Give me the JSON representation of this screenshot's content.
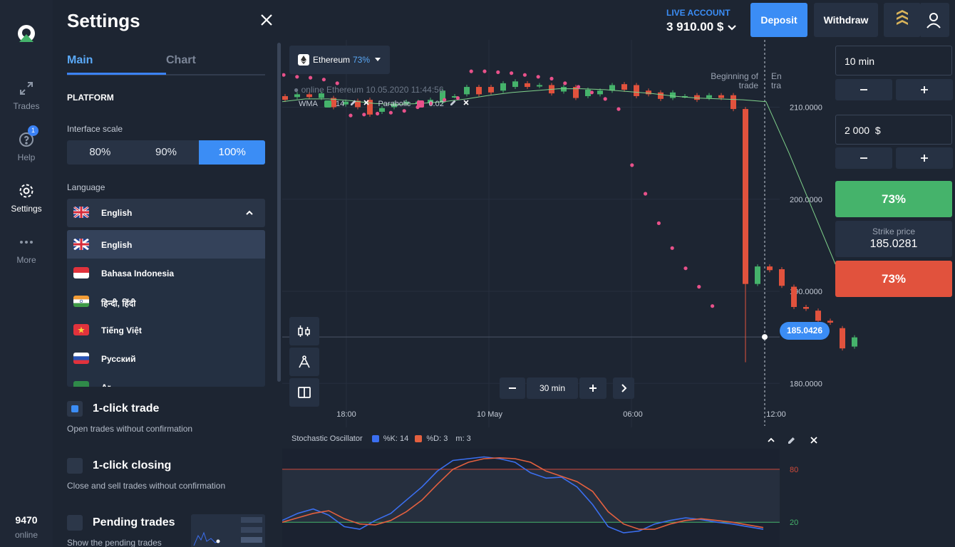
{
  "rail": {
    "items": [
      {
        "label": "Trades",
        "icon": "arrows-icon"
      },
      {
        "label": "Help",
        "icon": "help-icon",
        "badge": "1"
      },
      {
        "label": "Settings",
        "icon": "gear-icon"
      },
      {
        "label": "More",
        "icon": "more-icon"
      }
    ],
    "online_count": "9470",
    "online_label": "online"
  },
  "settings": {
    "title": "Settings",
    "tabs": [
      "Main",
      "Chart"
    ],
    "platform_label": "PLATFORM",
    "interface_scale_label": "Interface scale",
    "scale_options": [
      "80%",
      "90%",
      "100%"
    ],
    "scale_selected": "100%",
    "language_label": "Language",
    "language_selected": "English",
    "languages": [
      "English",
      "Bahasa Indonesia",
      "हिन्दी, हिंदी",
      "Tiếng Việt",
      "Русский",
      "Ar"
    ],
    "one_click_trade": {
      "title": "1-click trade",
      "desc": "Open trades without confirmation",
      "checked": true
    },
    "one_click_closing": {
      "title": "1-click closing",
      "desc": "Close and sell trades without confirmation",
      "checked": false
    },
    "pending_trades": {
      "title": "Pending trades",
      "desc": "Show the pending trades",
      "checked": false
    }
  },
  "topbar": {
    "account_label": "LIVE ACCOUNT",
    "balance": "3 910.00 $",
    "deposit": "Deposit",
    "withdraw": "Withdraw"
  },
  "asset": {
    "name": "Ethereum",
    "percent": "73%"
  },
  "chart_info": {
    "online_line": "online Ethereum  10.05.2020 11:44:56",
    "wma_label": "WMA",
    "wma_period": "14",
    "parabolic_label": "Parabolic",
    "parabolic_value": "0.02",
    "beginning_of_trade": "Beginning of trade",
    "end_of_trade_partial": "En tra",
    "timeframe": "30 min",
    "current_price": "185.0426",
    "colors": {
      "up": "#45b36b",
      "down": "#e1523d",
      "wma": "#7fd18b",
      "parabolic": "#e8518a",
      "k": "#3b6ff0",
      "d": "#e3603f"
    }
  },
  "chart_data": [
    {
      "type": "line",
      "title": "Ethereum",
      "y_ticks": [
        210,
        200,
        190,
        180
      ],
      "ylim": [
        176,
        217
      ],
      "x_ticks": [
        "18:00",
        "10 May",
        "06:00",
        "12:00"
      ],
      "candles": [
        {
          "o": 211.2,
          "c": 210.8
        },
        {
          "o": 211.1,
          "c": 211.4
        },
        {
          "o": 211.4,
          "c": 211.1
        },
        {
          "o": 211.0,
          "c": 211.5
        },
        {
          "o": 211.0,
          "c": 210.0
        },
        {
          "o": 210.3,
          "c": 210.6
        },
        {
          "o": 210.7,
          "c": 210.0
        },
        {
          "o": 210.8,
          "c": 209.2
        },
        {
          "o": 209.5,
          "c": 209.9
        },
        {
          "o": 210.0,
          "c": 210.4
        },
        {
          "o": 210.4,
          "c": 210.6
        },
        {
          "o": 210.4,
          "c": 210.6
        },
        {
          "o": 210.5,
          "c": 210.8
        },
        {
          "o": 210.5,
          "c": 211.8
        },
        {
          "o": 211.2,
          "c": 211.2
        },
        {
          "o": 211.4,
          "c": 212.2
        },
        {
          "o": 212.2,
          "c": 211.4
        },
        {
          "o": 212.2,
          "c": 211.6
        },
        {
          "o": 211.8,
          "c": 212.6
        },
        {
          "o": 212.2,
          "c": 212.8
        },
        {
          "o": 212.6,
          "c": 212.2
        },
        {
          "o": 212.3,
          "c": 212.4
        },
        {
          "o": 212.4,
          "c": 211.5
        },
        {
          "o": 211.7,
          "c": 212.2
        },
        {
          "o": 212.2,
          "c": 211.0
        },
        {
          "o": 211.2,
          "c": 211.9
        },
        {
          "o": 211.4,
          "c": 211.8
        },
        {
          "o": 211.8,
          "c": 212.4
        },
        {
          "o": 212.5,
          "c": 211.9
        },
        {
          "o": 212.4,
          "c": 211.2
        },
        {
          "o": 211.8,
          "c": 211.4
        },
        {
          "o": 211.6,
          "c": 210.9
        },
        {
          "o": 211.0,
          "c": 211.6
        },
        {
          "o": 211.2,
          "c": 211.2
        },
        {
          "o": 211.3,
          "c": 210.8
        },
        {
          "o": 211.0,
          "c": 211.3
        },
        {
          "o": 211.3,
          "c": 211.0
        },
        {
          "o": 211.3,
          "c": 209.8
        },
        {
          "o": 209.8,
          "c": 190.8
        },
        {
          "o": 190.8,
          "c": 192.7
        },
        {
          "o": 192.7,
          "c": 192.3
        },
        {
          "o": 192.4,
          "c": 190.6
        },
        {
          "o": 190.5,
          "c": 188.3
        },
        {
          "o": 188.3,
          "c": 188.1
        },
        {
          "o": 187.9,
          "c": 186.8
        },
        {
          "o": 186.8,
          "c": 186.6
        },
        {
          "o": 186.0,
          "c": 183.8
        },
        {
          "o": 184.0,
          "c": 185.0
        }
      ],
      "wma": [
        210.6,
        210.9,
        210.9,
        210.7,
        210.4,
        210.3,
        210.4,
        210.6,
        210.9,
        211.3,
        211.6,
        211.8,
        212.0,
        212.0,
        211.9,
        211.7,
        211.5,
        211.2,
        211.0,
        210.9,
        210.8,
        210.6,
        205.0,
        199.0,
        193.0,
        189.5
      ],
      "parabolic": [
        213.5,
        213.3,
        213.2,
        213.0,
        212.6,
        209.1,
        209.2,
        209.3,
        209.4,
        209.6,
        210.0,
        210.4,
        210.8,
        211.0,
        213.9,
        213.9,
        213.8,
        213.7,
        213.5,
        213.3,
        213.1,
        212.6,
        212.2,
        211.6,
        210.9,
        209.8,
        203.7,
        200.6,
        197.4,
        194.7,
        192.5,
        190.5,
        188.4
      ],
      "current_price": 185.0426
    },
    {
      "type": "line",
      "title": "Stochastic Oscillator",
      "series": [
        {
          "name": "%K: 14",
          "values": [
            22,
            30,
            35,
            28,
            15,
            12,
            22,
            30,
            45,
            60,
            78,
            90,
            92,
            94,
            92,
            88,
            76,
            70,
            71,
            60,
            40,
            15,
            8,
            10,
            18,
            22,
            25,
            23,
            20,
            18,
            15,
            12
          ]
        },
        {
          "name": "%D: 3",
          "values": [
            20,
            25,
            30,
            33,
            24,
            18,
            17,
            22,
            32,
            45,
            63,
            80,
            88,
            92,
            93,
            92,
            88,
            78,
            72,
            66,
            55,
            32,
            18,
            12,
            12,
            18,
            22,
            24,
            22,
            20,
            17,
            14
          ]
        }
      ],
      "m_label": "m: 3",
      "levels": [
        80,
        20
      ],
      "ylim": [
        0,
        100
      ]
    }
  ],
  "trade": {
    "time": "10 min",
    "amount": "2 000",
    "amount_currency": "$",
    "up_percent": "73%",
    "down_percent": "73%",
    "strike_label": "Strike price",
    "strike_price": "185.0281"
  }
}
